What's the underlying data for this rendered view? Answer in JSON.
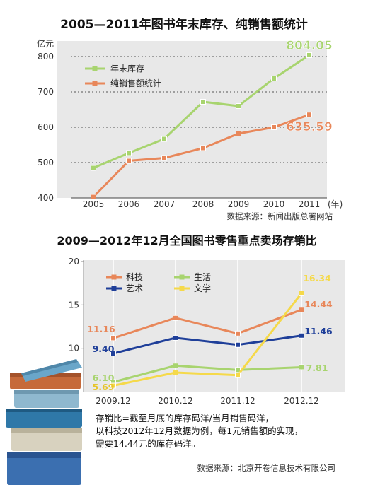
{
  "chart_data": [
    {
      "type": "line",
      "title": "2005—2011年图书年末库存、纯销售额统计",
      "ylabel": "亿元",
      "xunit": "(年)",
      "categories": [
        "2005",
        "2006",
        "2007",
        "2008",
        "2009",
        "2010",
        "2011"
      ],
      "ylim": [
        400,
        800
      ],
      "yticks": [
        400,
        500,
        600,
        700,
        800
      ],
      "grid": "dashed-horizontal",
      "legend": "top-left",
      "series": [
        {
          "name": "年末库存",
          "color": "#a8d46f",
          "values": [
            485,
            527,
            567,
            672,
            660,
            738,
            804.05
          ]
        },
        {
          "name": "纯销售额统计",
          "color": "#e8875a",
          "values": [
            403,
            505,
            513,
            541,
            582,
            600,
            635.59
          ]
        }
      ],
      "labels": [
        {
          "series": 0,
          "index": 6,
          "text": "804.05",
          "color": "#a8d46f"
        },
        {
          "series": 1,
          "index": 6,
          "text": "635.59",
          "color": "#e8875a"
        }
      ],
      "source": "数据来源：新闻出版总署网站"
    },
    {
      "type": "line",
      "title": "2009—2012年12月全国图书零售重点卖场存销比",
      "categories": [
        "2009.12",
        "2010.12",
        "2011.12",
        "2012.12"
      ],
      "ylim": [
        5,
        20
      ],
      "yticks": [
        10,
        15,
        20
      ],
      "grid": "solid-vertical",
      "legend": "top",
      "series": [
        {
          "name": "科技",
          "color": "#e8875a",
          "values": [
            11.16,
            13.5,
            11.7,
            14.44
          ]
        },
        {
          "name": "艺术",
          "color": "#1f3f99",
          "values": [
            9.4,
            11.2,
            10.4,
            11.46
          ]
        },
        {
          "name": "生活",
          "color": "#a8d46f",
          "values": [
            6.1,
            8.0,
            7.5,
            7.81
          ]
        },
        {
          "name": "文学",
          "color": "#f5d94a",
          "values": [
            5.69,
            7.2,
            6.9,
            16.34
          ]
        }
      ],
      "labels": [
        {
          "series": 0,
          "index": 0,
          "text": "11.16",
          "color": "#e8875a"
        },
        {
          "series": 1,
          "index": 0,
          "text": "9.40",
          "color": "#1f3f99"
        },
        {
          "series": 2,
          "index": 0,
          "text": "6.10",
          "color": "#a8d46f"
        },
        {
          "series": 3,
          "index": 0,
          "text": "5.69",
          "color": "#e6c52c"
        },
        {
          "series": 3,
          "index": 3,
          "text": "16.34",
          "color": "#f5d94a"
        },
        {
          "series": 0,
          "index": 3,
          "text": "14.44",
          "color": "#e8875a"
        },
        {
          "series": 1,
          "index": 3,
          "text": "11.46",
          "color": "#1f3f99"
        },
        {
          "series": 2,
          "index": 3,
          "text": "7.81",
          "color": "#a8d46f"
        }
      ],
      "note": [
        "存销比=截至月底的库存码洋/当月销售码洋，",
        "以科技2012年12月数据为例，每1元销售额的实现，",
        "需要14.44元的库存码洋。"
      ],
      "source": "数据来源：北京开卷信息技术有限公司"
    }
  ]
}
